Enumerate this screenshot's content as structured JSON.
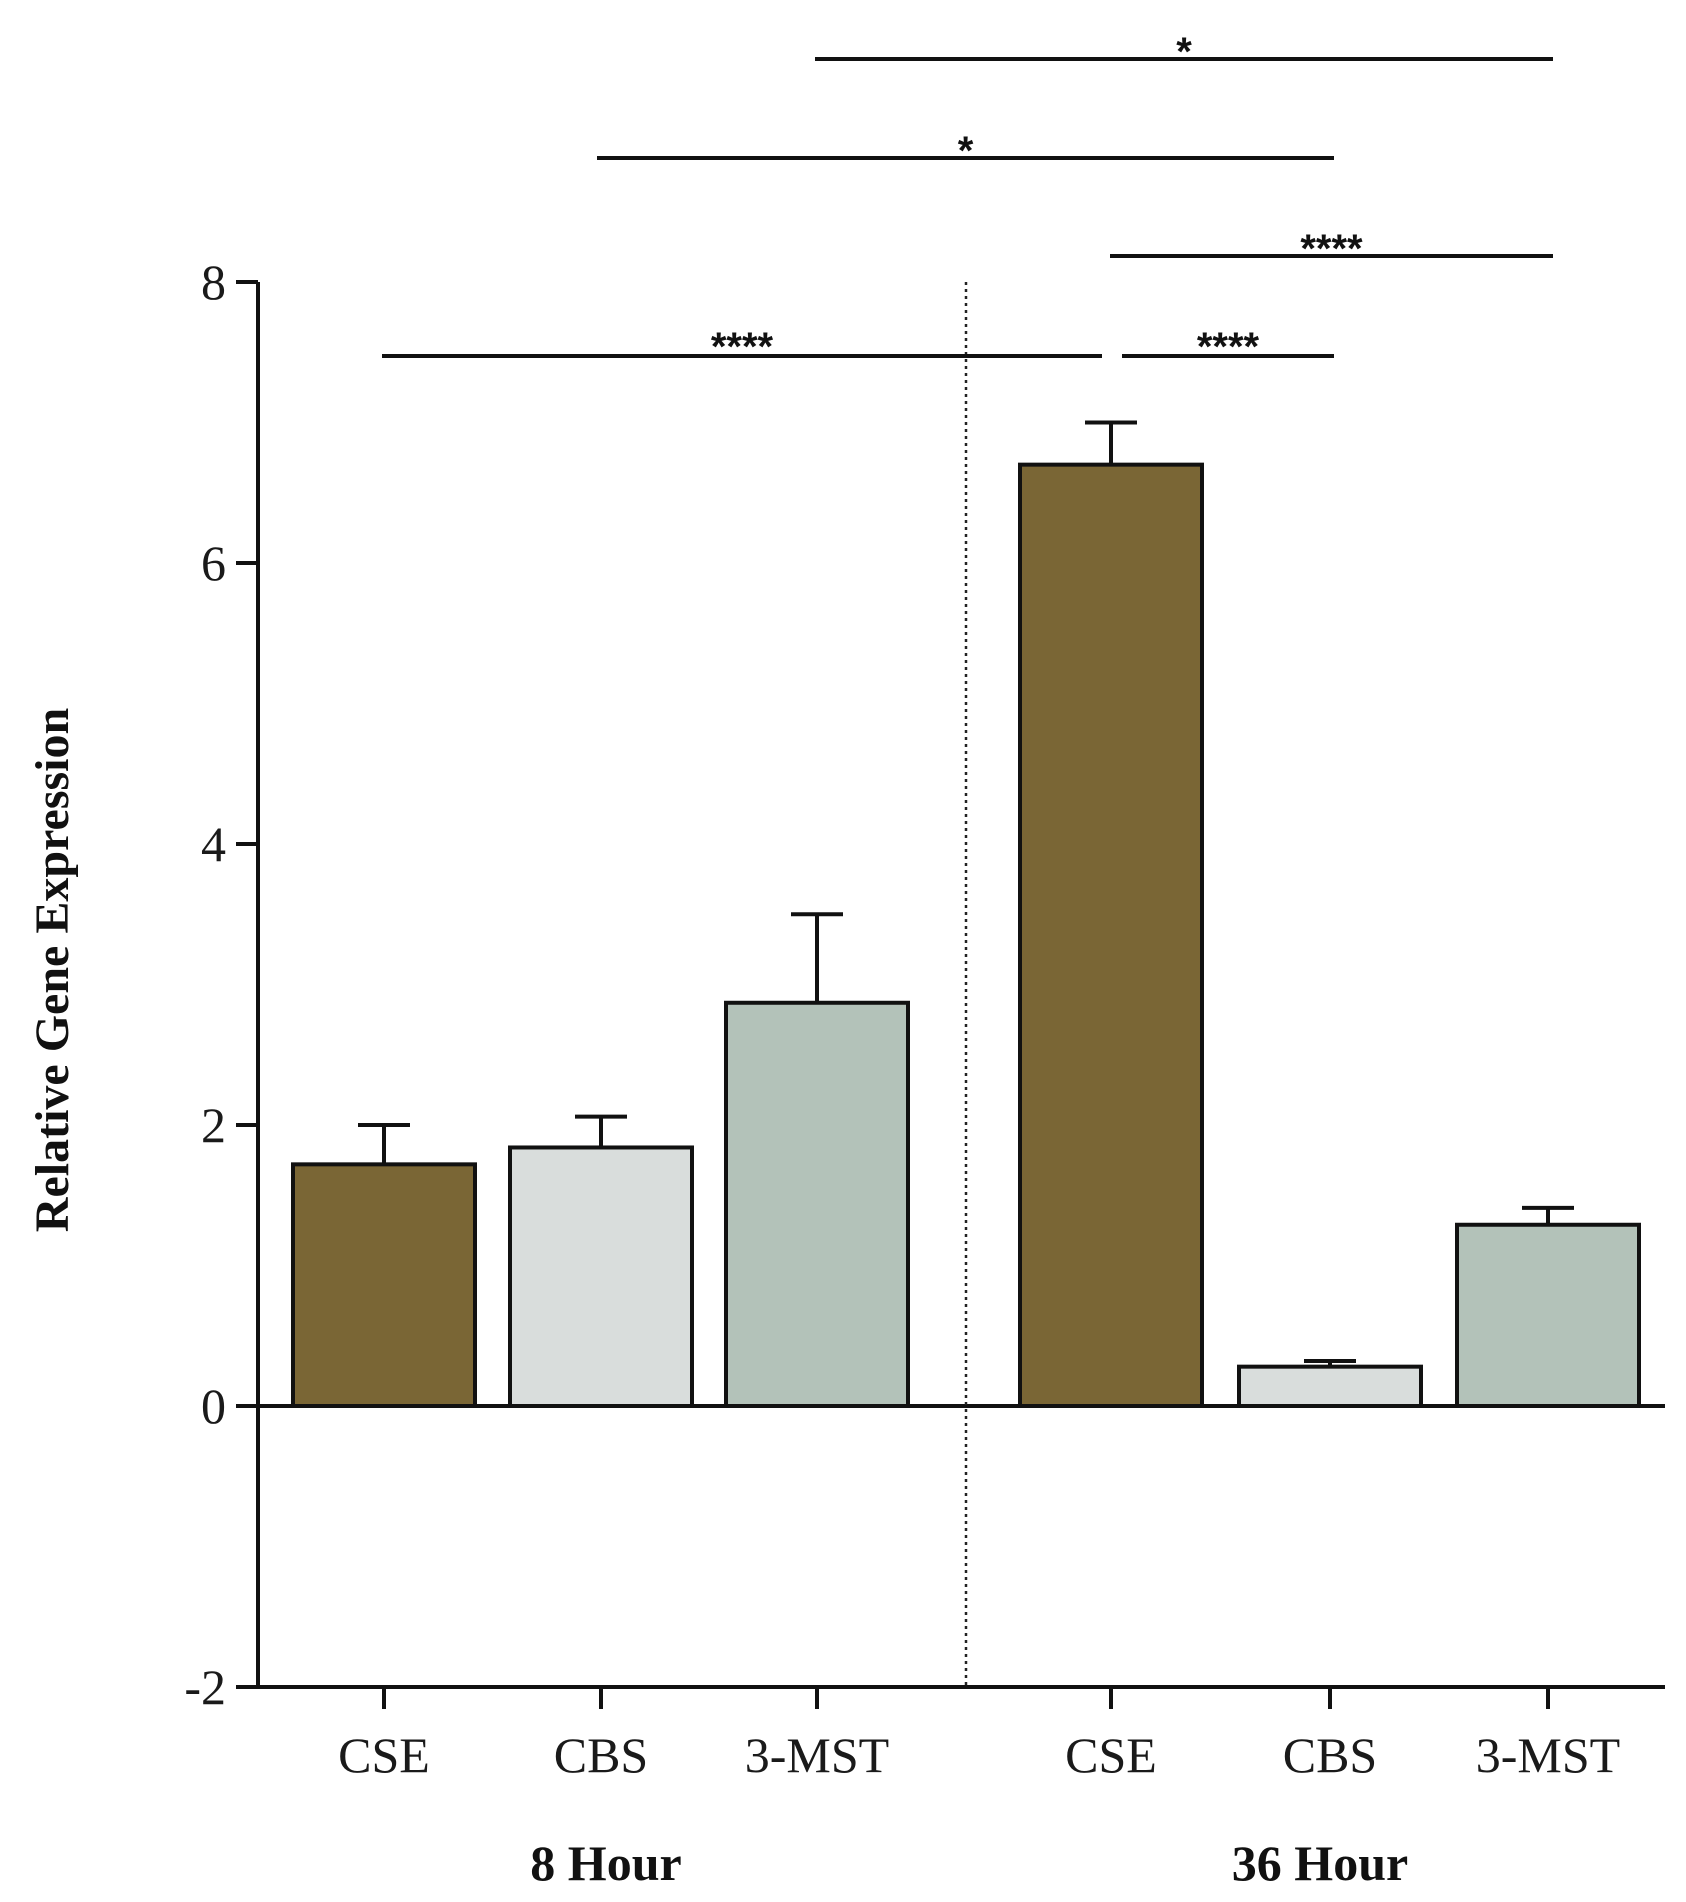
{
  "chart_data": {
    "type": "bar",
    "title": "",
    "xlabel": "",
    "ylabel": "Relative Gene Expression",
    "ylim": [
      -2,
      8
    ],
    "yticks": [
      -2,
      0,
      2,
      4,
      6,
      8
    ],
    "grid": false,
    "legend": "none",
    "groups": [
      {
        "label": "8 Hour",
        "categories": [
          "CSE",
          "CBS",
          "3-MST"
        ]
      },
      {
        "label": "36 Hour",
        "categories": [
          "CSE",
          "CBS",
          "3-MST"
        ]
      }
    ],
    "bars": [
      {
        "group": "8 Hour",
        "category": "CSE",
        "value": 1.72,
        "error": 0.28,
        "color": "#7a6635"
      },
      {
        "group": "8 Hour",
        "category": "CBS",
        "value": 1.84,
        "error": 0.22,
        "color": "#d9dddc"
      },
      {
        "group": "8 Hour",
        "category": "3-MST",
        "value": 2.87,
        "error": 0.63,
        "color": "#b3c2b9"
      },
      {
        "group": "36 Hour",
        "category": "CSE",
        "value": 6.7,
        "error": 0.3,
        "color": "#7a6635"
      },
      {
        "group": "36 Hour",
        "category": "CBS",
        "value": 0.28,
        "error": 0.04,
        "color": "#d9dddc"
      },
      {
        "group": "36 Hour",
        "category": "3-MST",
        "value": 1.29,
        "error": 0.12,
        "color": "#b3c2b9"
      }
    ],
    "significance": [
      {
        "from": 0,
        "to": 3,
        "label": "****"
      },
      {
        "from": 3,
        "to": 4,
        "label": "****"
      },
      {
        "from": 3,
        "to": 5,
        "label": "****"
      },
      {
        "from": 1,
        "to": 4,
        "label": "*"
      },
      {
        "from": 2,
        "to": 5,
        "label": "*"
      }
    ]
  }
}
